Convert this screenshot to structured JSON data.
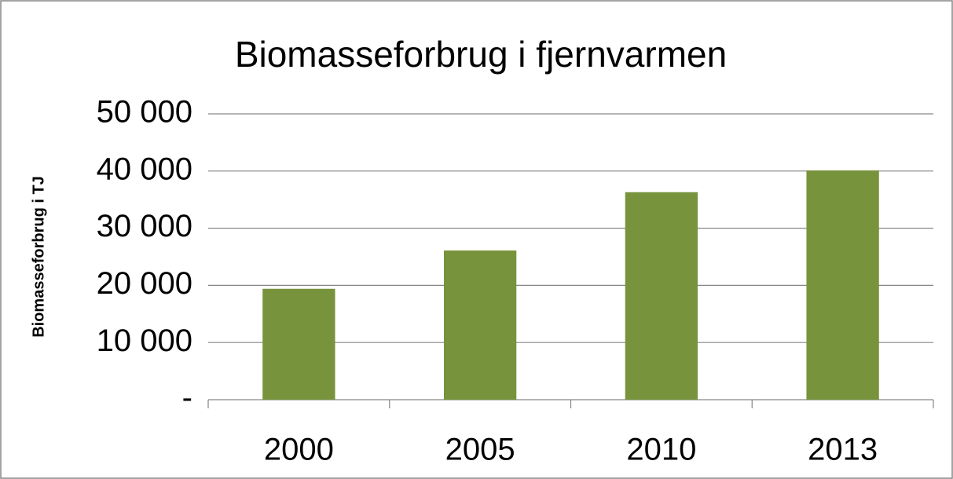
{
  "chart_data": {
    "type": "bar",
    "title": "Biomasseforbrug i fjernvarmen",
    "y_label": "Biomasseforbrug i TJ",
    "categories": [
      "2000",
      "2005",
      "2010",
      "2013"
    ],
    "values": [
      19400,
      26100,
      36300,
      40100
    ],
    "color": "#77933c",
    "ylim": [
      0,
      50000
    ],
    "yticks": [
      {
        "value": 0,
        "label": "-"
      },
      {
        "value": 10000,
        "label": "10 000"
      },
      {
        "value": 20000,
        "label": "20 000"
      },
      {
        "value": 30000,
        "label": "30 000"
      },
      {
        "value": 40000,
        "label": "40 000"
      },
      {
        "value": 50000,
        "label": "50 000"
      }
    ],
    "grid": true
  }
}
